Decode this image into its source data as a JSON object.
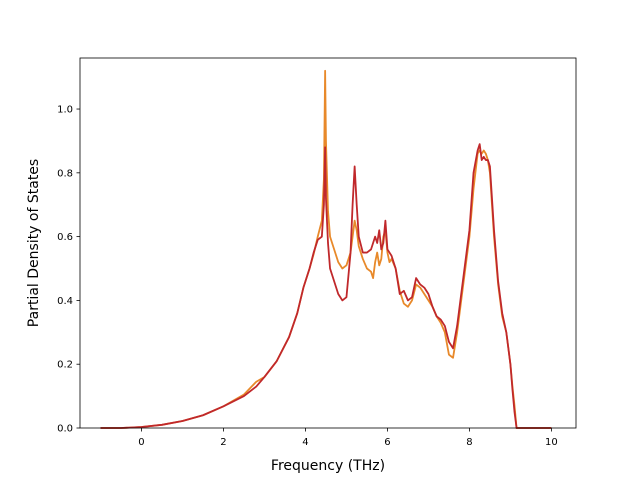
{
  "chart_data": {
    "type": "line",
    "xlabel": "Frequency (THz)",
    "ylabel": "Partial Density of States",
    "xlim": [
      -1.5,
      10.6
    ],
    "ylim": [
      0,
      1.16
    ],
    "xticks": [
      0,
      2,
      4,
      6,
      8,
      10
    ],
    "yticks": [
      0.0,
      0.2,
      0.4,
      0.6,
      0.8,
      1.0
    ],
    "xtick_labels": [
      "0",
      "2",
      "4",
      "6",
      "8",
      "10"
    ],
    "ytick_labels": [
      "0.0",
      "0.2",
      "0.4",
      "0.6",
      "0.8",
      "1.0"
    ],
    "grid": false,
    "legend": "none",
    "series": [
      {
        "color": "#e8892a",
        "x": [
          -1.0,
          -0.5,
          0.0,
          0.5,
          1.0,
          1.5,
          2.0,
          2.5,
          2.8,
          3.0,
          3.3,
          3.6,
          3.8,
          3.95,
          4.1,
          4.2,
          4.3,
          4.4,
          4.45,
          4.48,
          4.5,
          4.55,
          4.6,
          4.7,
          4.8,
          4.9,
          5.0,
          5.1,
          5.15,
          5.2,
          5.25,
          5.3,
          5.4,
          5.5,
          5.6,
          5.65,
          5.7,
          5.75,
          5.8,
          5.85,
          5.9,
          5.95,
          6.0,
          6.05,
          6.1,
          6.2,
          6.3,
          6.4,
          6.5,
          6.6,
          6.7,
          6.8,
          6.9,
          7.0,
          7.1,
          7.2,
          7.3,
          7.4,
          7.5,
          7.6,
          7.7,
          7.8,
          7.9,
          8.0,
          8.1,
          8.2,
          8.25,
          8.3,
          8.35,
          8.4,
          8.45,
          8.5,
          8.6,
          8.7,
          8.8,
          8.9,
          9.0,
          9.05,
          9.1,
          9.15,
          9.3,
          10.0
        ],
        "y": [
          0.0,
          0.0,
          0.003,
          0.01,
          0.022,
          0.04,
          0.068,
          0.105,
          0.145,
          0.16,
          0.21,
          0.285,
          0.36,
          0.44,
          0.5,
          0.545,
          0.6,
          0.65,
          0.78,
          1.12,
          0.9,
          0.68,
          0.6,
          0.56,
          0.52,
          0.5,
          0.51,
          0.55,
          0.6,
          0.65,
          0.62,
          0.57,
          0.53,
          0.5,
          0.49,
          0.47,
          0.52,
          0.55,
          0.51,
          0.53,
          0.6,
          0.62,
          0.55,
          0.52,
          0.53,
          0.5,
          0.43,
          0.39,
          0.38,
          0.4,
          0.45,
          0.44,
          0.42,
          0.4,
          0.38,
          0.35,
          0.33,
          0.3,
          0.23,
          0.22,
          0.3,
          0.4,
          0.5,
          0.6,
          0.75,
          0.86,
          0.87,
          0.86,
          0.87,
          0.86,
          0.84,
          0.8,
          0.6,
          0.45,
          0.35,
          0.3,
          0.2,
          0.13,
          0.07,
          0.0,
          0.0,
          0.0
        ]
      },
      {
        "color": "#c0282b",
        "x": [
          -1.0,
          -0.5,
          0.0,
          0.5,
          1.0,
          1.5,
          2.0,
          2.5,
          2.8,
          3.0,
          3.3,
          3.6,
          3.8,
          3.95,
          4.1,
          4.2,
          4.3,
          4.4,
          4.45,
          4.48,
          4.5,
          4.55,
          4.6,
          4.7,
          4.8,
          4.9,
          5.0,
          5.1,
          5.15,
          5.2,
          5.25,
          5.3,
          5.4,
          5.5,
          5.6,
          5.65,
          5.7,
          5.75,
          5.8,
          5.85,
          5.9,
          5.95,
          6.0,
          6.05,
          6.1,
          6.2,
          6.3,
          6.4,
          6.5,
          6.6,
          6.7,
          6.8,
          6.9,
          7.0,
          7.1,
          7.2,
          7.3,
          7.4,
          7.5,
          7.6,
          7.7,
          7.8,
          7.9,
          8.0,
          8.1,
          8.2,
          8.25,
          8.3,
          8.35,
          8.4,
          8.45,
          8.5,
          8.6,
          8.7,
          8.8,
          8.9,
          9.0,
          9.05,
          9.1,
          9.15,
          9.3,
          10.0
        ],
        "y": [
          0.0,
          0.0,
          0.003,
          0.01,
          0.022,
          0.04,
          0.068,
          0.1,
          0.13,
          0.16,
          0.21,
          0.285,
          0.36,
          0.44,
          0.5,
          0.55,
          0.59,
          0.6,
          0.7,
          0.88,
          0.72,
          0.58,
          0.5,
          0.46,
          0.42,
          0.4,
          0.41,
          0.55,
          0.7,
          0.82,
          0.7,
          0.6,
          0.55,
          0.55,
          0.56,
          0.58,
          0.6,
          0.58,
          0.62,
          0.56,
          0.58,
          0.65,
          0.56,
          0.55,
          0.54,
          0.5,
          0.42,
          0.43,
          0.4,
          0.41,
          0.47,
          0.45,
          0.44,
          0.42,
          0.38,
          0.35,
          0.34,
          0.32,
          0.27,
          0.25,
          0.32,
          0.42,
          0.52,
          0.62,
          0.8,
          0.87,
          0.89,
          0.84,
          0.85,
          0.84,
          0.84,
          0.82,
          0.62,
          0.46,
          0.36,
          0.3,
          0.2,
          0.12,
          0.05,
          0.0,
          0.0,
          0.0
        ]
      }
    ]
  }
}
